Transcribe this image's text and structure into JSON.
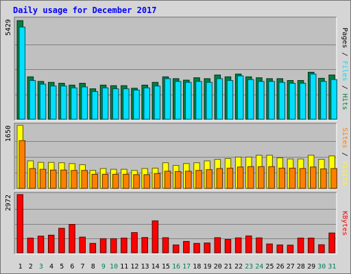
{
  "chart_data": {
    "type": "bar",
    "title": "Daily usage for December 2017",
    "days": [
      "1",
      "2",
      "3",
      "4",
      "5",
      "6",
      "7",
      "8",
      "9",
      "10",
      "11",
      "12",
      "13",
      "14",
      "15",
      "16",
      "17",
      "18",
      "19",
      "20",
      "21",
      "22",
      "23",
      "24",
      "25",
      "26",
      "27",
      "28",
      "29",
      "30",
      "31"
    ],
    "weekend_days": [
      "3",
      "9",
      "10",
      "16",
      "17",
      "23",
      "24",
      "30",
      "31"
    ],
    "panels": [
      {
        "id": "hits-files-pages",
        "ymax": 5429,
        "ymax_label": "5429",
        "legend": [
          "Pages",
          "Files",
          "Hits"
        ],
        "series": [
          {
            "name": "Hits",
            "color": "#008040",
            "values": [
              5350,
              2300,
              2050,
              2000,
              1950,
              1850,
              1950,
              1650,
              1850,
              1820,
              1820,
              1680,
              1850,
              2000,
              2300,
              2200,
              2120,
              2250,
              2200,
              2400,
              2300,
              2450,
              2300,
              2250,
              2200,
              2200,
              2100,
              2100,
              2550,
              2220,
              2400
            ]
          },
          {
            "name": "Files",
            "color": "#00e0ff",
            "values": [
              5000,
              2100,
              1900,
              1800,
              1800,
              1700,
              1750,
              1500,
              1700,
              1650,
              1650,
              1580,
              1700,
              1800,
              2200,
              2050,
              2000,
              2050,
              2000,
              2200,
              2100,
              2350,
              2150,
              2050,
              2050,
              2000,
              1950,
              1950,
              2450,
              2050,
              2150
            ]
          }
        ]
      },
      {
        "id": "visits-sites",
        "ymax": 1650,
        "ymax_label": "1650",
        "legend": [
          "Sites",
          "Visits"
        ],
        "series": [
          {
            "name": "Visits",
            "color": "#ffff00",
            "values": [
              1650,
              720,
              680,
              680,
              670,
              650,
              620,
              470,
              520,
              500,
              500,
              470,
              520,
              530,
              670,
              600,
              650,
              670,
              720,
              760,
              780,
              820,
              820,
              870,
              870,
              800,
              770,
              770,
              870,
              760,
              850
            ]
          },
          {
            "name": "Sites",
            "color": "#ff8000",
            "values": [
              1250,
              520,
              500,
              480,
              480,
              470,
              470,
              370,
              370,
              370,
              370,
              360,
              360,
              390,
              450,
              440,
              450,
              470,
              490,
              520,
              530,
              560,
              570,
              570,
              570,
              530,
              530,
              520,
              560,
              510,
              520
            ]
          }
        ]
      },
      {
        "id": "kbytes",
        "ymax": 2972,
        "ymax_label": "2972",
        "legend": [
          "KBytes"
        ],
        "series": [
          {
            "name": "KBytes",
            "color": "#ff0000",
            "values": [
              2972,
              750,
              850,
              900,
              1250,
              1450,
              800,
              480,
              720,
              720,
              750,
              1030,
              780,
              1630,
              770,
              400,
              580,
              480,
              500,
              770,
              680,
              760,
              860,
              760,
              450,
              400,
              390,
              750,
              750,
              410,
              1010
            ]
          }
        ]
      }
    ]
  }
}
